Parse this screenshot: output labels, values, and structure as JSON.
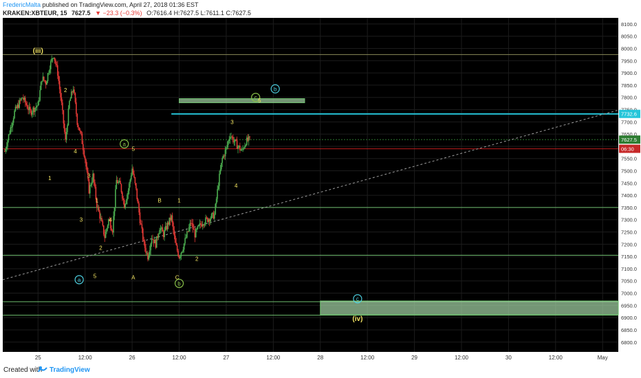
{
  "header": {
    "author": "FredericMalta",
    "published": "published on TradingView.com, April 27, 2018 01:36 EST",
    "symbol": "KRAKEN:XBTEUR, 15",
    "last": "7627.5",
    "change": "−23.3 (−0.3%)",
    "ohlc": "O:7616.4 H:7627.5 L:7611.1 C:7627.5"
  },
  "footer": {
    "created_with": "Created with",
    "brand": "TradingView"
  },
  "colors": {
    "background": "#000000",
    "grid": "#1c1c1c",
    "up": "#4caf50",
    "down": "#e53935",
    "wave_yellow": "#f5e663",
    "wave_green": "#8bc34a",
    "wave_cyan": "#4dd0e1",
    "cyan_level": "#26c6da",
    "zone_fill": "#a5d6a7",
    "support_line": "#6fbf6f"
  },
  "chart_data": {
    "type": "candlestick",
    "title": "",
    "ylim": [
      6760,
      8125
    ],
    "y_ticks": [
      "6800.0",
      "6850.0",
      "6900.0",
      "6950.0",
      "7000.0",
      "7050.0",
      "7100.0",
      "7150.0",
      "7200.0",
      "7250.0",
      "7300.0",
      "7350.0",
      "7400.0",
      "7450.0",
      "7500.0",
      "7550.0",
      "7600.0",
      "7650.0",
      "7700.0",
      "7750.0",
      "7800.0",
      "7850.0",
      "7900.0",
      "7950.0",
      "8000.0",
      "8050.0",
      "8100.0"
    ],
    "x_ticks": [
      {
        "label": "25",
        "t": 0
      },
      {
        "label": "12:00",
        "t": 12
      },
      {
        "label": "26",
        "t": 24
      },
      {
        "label": "12:00",
        "t": 36
      },
      {
        "label": "27",
        "t": 48
      },
      {
        "label": "12:00",
        "t": 60
      },
      {
        "label": "28",
        "t": 72
      },
      {
        "label": "12:00",
        "t": 84
      },
      {
        "label": "29",
        "t": 96
      },
      {
        "label": "12:00",
        "t": 108
      },
      {
        "label": "30",
        "t": 120
      },
      {
        "label": "12:00",
        "t": 132
      },
      {
        "label": "May",
        "t": 144
      }
    ],
    "xlim": [
      -9,
      148
    ],
    "price_path": [
      [
        -8.5,
        7580
      ],
      [
        -6,
        7740
      ],
      [
        -4,
        7800
      ],
      [
        -2,
        7740
      ],
      [
        0,
        7770
      ],
      [
        1,
        7880
      ],
      [
        2,
        7860
      ],
      [
        3,
        7930
      ],
      [
        4,
        7975
      ],
      [
        5,
        7900
      ],
      [
        6,
        7770
      ],
      [
        7,
        7620
      ],
      [
        8,
        7780
      ],
      [
        9,
        7840
      ],
      [
        10,
        7700
      ],
      [
        11,
        7640
      ],
      [
        12,
        7550
      ],
      [
        13,
        7420
      ],
      [
        14,
        7480
      ],
      [
        15,
        7360
      ],
      [
        16,
        7300
      ],
      [
        17,
        7230
      ],
      [
        18,
        7300
      ],
      [
        19,
        7260
      ],
      [
        20,
        7460
      ],
      [
        21,
        7440
      ],
      [
        22,
        7360
      ],
      [
        23,
        7420
      ],
      [
        24,
        7510
      ],
      [
        25,
        7420
      ],
      [
        26,
        7300
      ],
      [
        27,
        7200
      ],
      [
        28,
        7150
      ],
      [
        29,
        7230
      ],
      [
        30,
        7200
      ],
      [
        31,
        7270
      ],
      [
        32,
        7240
      ],
      [
        33,
        7280
      ],
      [
        34,
        7310
      ],
      [
        35,
        7200
      ],
      [
        36,
        7150
      ],
      [
        37,
        7190
      ],
      [
        38,
        7240
      ],
      [
        39,
        7290
      ],
      [
        40,
        7240
      ],
      [
        41,
        7270
      ],
      [
        42,
        7290
      ],
      [
        43,
        7300
      ],
      [
        44,
        7310
      ],
      [
        45,
        7320
      ],
      [
        46,
        7450
      ],
      [
        47,
        7550
      ],
      [
        48,
        7590
      ],
      [
        49,
        7650
      ],
      [
        50,
        7620
      ],
      [
        51,
        7600
      ],
      [
        52,
        7580
      ],
      [
        53,
        7620
      ],
      [
        54,
        7627.5
      ]
    ],
    "levels": [
      {
        "name": "cyan-level",
        "price": 7732.6,
        "from_t": 34,
        "color": "#26c6da",
        "label": "7732.6"
      },
      {
        "name": "green-dotted-level",
        "price": 7627.5,
        "from_t": -9,
        "dotted": true,
        "color": "#2e7d32",
        "label": "7627.5"
      },
      {
        "name": "red-level",
        "price": 7590,
        "from_t": -9,
        "color": "#b71c1c",
        "label": "06:30"
      },
      {
        "name": "level-7975",
        "price": 7975,
        "from_t": -9,
        "color": "#8a8a5a"
      },
      {
        "name": "level-7350",
        "price": 7350,
        "from_t": -9,
        "color": "#6fbf6f"
      },
      {
        "name": "level-7155",
        "price": 7155,
        "from_t": -9,
        "color": "#6fbf6f"
      },
      {
        "name": "level-6965",
        "price": 6965,
        "from_t": -9,
        "color": "#6fbf6f"
      },
      {
        "name": "level-6910",
        "price": 6910,
        "from_t": -9,
        "color": "#6fbf6f"
      }
    ],
    "trendline": {
      "t1": -9,
      "p1": 7055,
      "t2": 148,
      "p2": 7748
    },
    "zones": [
      {
        "name": "target-zone-c",
        "t1": 36,
        "t2": 68,
        "p1": 7780,
        "p2": 7795
      },
      {
        "name": "target-zone-iv",
        "t1": 72,
        "t2": 148,
        "p1": 6912,
        "p2": 6968
      }
    ],
    "labels": [
      {
        "text": "(iii)",
        "t": 0,
        "p": 7990,
        "color": "yellow",
        "style": "paren"
      },
      {
        "text": "2",
        "t": 7,
        "p": 7830,
        "color": "yellow"
      },
      {
        "text": "1",
        "t": 3,
        "p": 7470,
        "color": "yellow"
      },
      {
        "text": "4",
        "t": 9.5,
        "p": 7580,
        "color": "yellow"
      },
      {
        "text": "3",
        "t": 13,
        "p": 7480,
        "color": "yellow"
      },
      {
        "text": "1",
        "t": 15,
        "p": 7380,
        "color": "yellow"
      },
      {
        "text": "3",
        "t": 11,
        "p": 7300,
        "color": "yellow"
      },
      {
        "text": "4",
        "t": 18.5,
        "p": 7300,
        "color": "yellow"
      },
      {
        "text": "2",
        "t": 16,
        "p": 7185,
        "color": "yellow"
      },
      {
        "text": "5",
        "t": 14.5,
        "p": 7070,
        "color": "yellow"
      },
      {
        "text": "a",
        "t": 10.5,
        "p": 7055,
        "color": "cyan",
        "style": "circle"
      },
      {
        "text": "a",
        "t": 22,
        "p": 7610,
        "color": "green",
        "style": "circle"
      },
      {
        "text": "5",
        "t": 24.3,
        "p": 7590,
        "color": "yellow"
      },
      {
        "text": "B",
        "t": 31,
        "p": 7380,
        "color": "yellow"
      },
      {
        "text": "1",
        "t": 36,
        "p": 7380,
        "color": "yellow"
      },
      {
        "text": "A",
        "t": 24.3,
        "p": 7065,
        "color": "yellow"
      },
      {
        "text": "C",
        "t": 35.5,
        "p": 7065,
        "color": "yellow"
      },
      {
        "text": "b",
        "t": 36,
        "p": 7040,
        "color": "green",
        "style": "circle"
      },
      {
        "text": "2",
        "t": 40.5,
        "p": 7140,
        "color": "yellow"
      },
      {
        "text": "3",
        "t": 49.5,
        "p": 7700,
        "color": "yellow"
      },
      {
        "text": "4",
        "t": 50.5,
        "p": 7440,
        "color": "yellow"
      },
      {
        "text": "c",
        "t": 55.5,
        "p": 7800,
        "color": "green",
        "style": "circle"
      },
      {
        "text": "5",
        "t": 56.5,
        "p": 7788,
        "color": "yellow"
      },
      {
        "text": "b",
        "t": 60.5,
        "p": 7835,
        "color": "cyan",
        "style": "circle"
      },
      {
        "text": "c",
        "t": 81.5,
        "p": 6977,
        "color": "cyan",
        "style": "circle"
      },
      {
        "text": "(iv)",
        "t": 81.5,
        "p": 6895,
        "color": "yellow",
        "style": "paren"
      }
    ]
  }
}
